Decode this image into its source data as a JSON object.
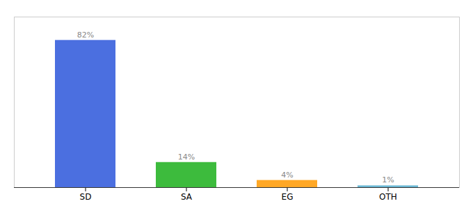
{
  "chart_data": {
    "type": "bar",
    "categories": [
      "SD",
      "SA",
      "EG",
      "OTH"
    ],
    "values": [
      82,
      14,
      4,
      1
    ],
    "value_labels": [
      "82%",
      "14%",
      "4%",
      "1%"
    ],
    "colors": [
      "#4B6FE0",
      "#3DBB3D",
      "#FFA826",
      "#6BB8D4"
    ],
    "ylim": [
      0,
      95
    ],
    "data_labels": true,
    "tick_labels": "x",
    "grid": false
  }
}
